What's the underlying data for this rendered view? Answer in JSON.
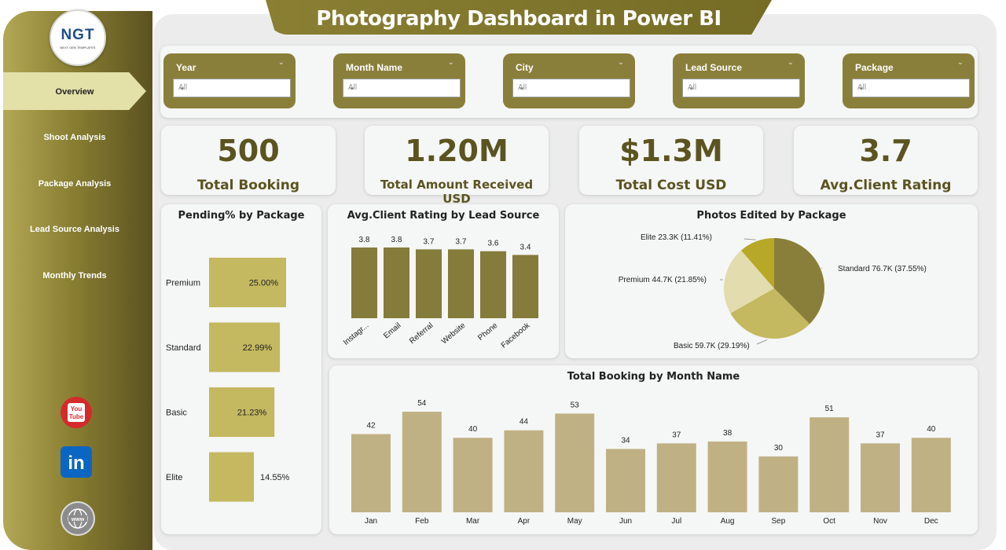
{
  "app": {
    "title": "Photography Dashboard in Power BI"
  },
  "logo": {
    "text": "NGT",
    "subtitle": "NEXT GEN TEMPLATES"
  },
  "nav": [
    {
      "label": "Overview",
      "active": true
    },
    {
      "label": "Shoot Analysis"
    },
    {
      "label": "Package Analysis"
    },
    {
      "label": "Lead Source Analysis"
    },
    {
      "label": "Monthly Trends"
    }
  ],
  "social": [
    {
      "label": "You Tube",
      "icon": "youtube-icon",
      "color": "#d42a2a"
    },
    {
      "label": "in",
      "icon": "linkedin-icon",
      "color": "#0a66c2"
    },
    {
      "label": "www",
      "icon": "globe-icon",
      "color": "#8c8c8c"
    }
  ],
  "filters": [
    {
      "label": "Year",
      "value": "All"
    },
    {
      "label": "Month Name",
      "value": "All"
    },
    {
      "label": "City",
      "value": "All"
    },
    {
      "label": "Lead Source",
      "value": "All"
    },
    {
      "label": "Package",
      "value": "All"
    }
  ],
  "kpis": [
    {
      "value": "500",
      "label": "Total Booking"
    },
    {
      "value": "1.20M",
      "label": "Total Amount Received USD"
    },
    {
      "value": "$1.3M",
      "label": "Total Cost USD"
    },
    {
      "value": "3.7",
      "label": "Avg.Client Rating"
    }
  ],
  "colors": {
    "accent": "#8a7f3a",
    "bar_light": "#c4b860",
    "bar_dark": "#857b3a",
    "bar_tan": "#c0b185"
  },
  "chart_data": [
    {
      "type": "bar",
      "orientation": "horizontal",
      "title": "Pending% by Package",
      "categories": [
        "Premium",
        "Standard",
        "Basic",
        "Elite"
      ],
      "values": [
        25.0,
        22.99,
        21.23,
        14.55
      ],
      "labels": [
        "25.00%",
        "22.99%",
        "21.23%",
        "14.55%"
      ]
    },
    {
      "type": "bar",
      "title": "Avg.Client Rating by Lead Source",
      "categories": [
        "Instagr...",
        "Email",
        "Referral",
        "Website",
        "Phone",
        "Facebook"
      ],
      "values": [
        3.8,
        3.8,
        3.7,
        3.7,
        3.6,
        3.4
      ]
    },
    {
      "type": "pie",
      "title": "Photos Edited by Package",
      "categories": [
        "Standard",
        "Basic",
        "Premium",
        "Elite"
      ],
      "values": [
        76.7,
        59.7,
        44.7,
        23.3
      ],
      "percents": [
        37.55,
        29.19,
        21.85,
        11.41
      ],
      "labels": [
        "Standard 76.7K (37.55%)",
        "Basic 59.7K (29.19%)",
        "Premium 44.7K (21.85%)",
        "Elite 23.3K (11.41%)"
      ],
      "colors": [
        "#8a7f3a",
        "#c4b860",
        "#e2dcae",
        "#b8a828"
      ]
    },
    {
      "type": "bar",
      "title": "Total Booking by Month Name",
      "categories": [
        "Jan",
        "Feb",
        "Mar",
        "Apr",
        "May",
        "Jun",
        "Jul",
        "Aug",
        "Sep",
        "Oct",
        "Nov",
        "Dec"
      ],
      "values": [
        42,
        54,
        40,
        44,
        53,
        34,
        37,
        38,
        30,
        51,
        37,
        40
      ]
    }
  ]
}
